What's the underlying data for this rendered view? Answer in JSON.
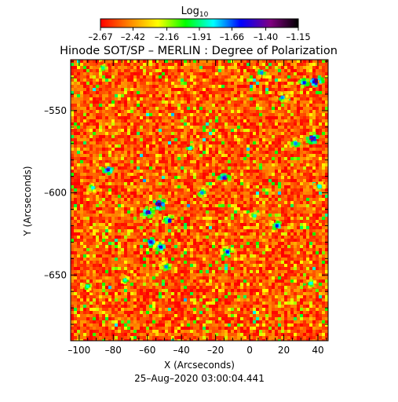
{
  "chart_data": {
    "type": "heatmap",
    "title": "Hinode SOT/SP – MERLIN : Degree of Polarization",
    "xlabel": "X (Arcseconds)",
    "ylabel": "Y (Arcseconds)",
    "timestamp": "25–Aug–2020 03:00:04.441",
    "xlim": [
      -105,
      46
    ],
    "ylim": [
      -690,
      -519
    ],
    "xticks": [
      -100,
      -80,
      -60,
      -40,
      -20,
      0,
      20,
      40
    ],
    "xtick_labels": [
      "–100",
      "–80",
      "–60",
      "–40",
      "–20",
      "0",
      "20",
      "40"
    ],
    "yticks": [
      -550,
      -600,
      -650
    ],
    "ytick_labels": [
      "–550",
      "–600",
      "–650"
    ],
    "colorbar": {
      "label_base": "Log",
      "label_sub": "10",
      "range": [
        -2.67,
        -1.15
      ],
      "ticks": [
        -2.67,
        -2.42,
        -2.16,
        -1.91,
        -1.66,
        -1.4,
        -1.15
      ],
      "tick_labels": [
        "–2.67",
        "–2.42",
        "–2.16",
        "–1.91",
        "–1.66",
        "–1.40",
        "–1.15"
      ],
      "colors": [
        "#ff0000",
        "#ff8000",
        "#ffff00",
        "#00ff00",
        "#00ffff",
        "#0000ff",
        "#800080",
        "#000000"
      ]
    },
    "background_level": -2.55,
    "regions": [
      {
        "x": -53,
        "y": -607,
        "level": -1.3
      },
      {
        "x": -60,
        "y": -612,
        "level": -1.45
      },
      {
        "x": -47,
        "y": -617,
        "level": -1.55
      },
      {
        "x": -58,
        "y": -630,
        "level": -1.5
      },
      {
        "x": -52,
        "y": -633,
        "level": -1.55
      },
      {
        "x": -49,
        "y": -645,
        "level": -1.7
      },
      {
        "x": 39,
        "y": -532,
        "level": -1.3
      },
      {
        "x": 32,
        "y": -533,
        "level": -1.6
      },
      {
        "x": 37,
        "y": -567,
        "level": -1.4
      },
      {
        "x": 27,
        "y": -570,
        "level": -1.7
      },
      {
        "x": 7,
        "y": -527,
        "level": -1.7
      },
      {
        "x": 19,
        "y": -542,
        "level": -1.7
      },
      {
        "x": -15,
        "y": -591,
        "level": -1.5
      },
      {
        "x": -28,
        "y": -600,
        "level": -1.7
      },
      {
        "x": -83,
        "y": -586,
        "level": -1.5
      },
      {
        "x": -92,
        "y": -597,
        "level": -1.8
      },
      {
        "x": -13,
        "y": -636,
        "level": -1.6
      },
      {
        "x": 16,
        "y": -620,
        "level": -1.6
      },
      {
        "x": -35,
        "y": -573,
        "level": -1.8
      },
      {
        "x": -95,
        "y": -657,
        "level": -1.85
      },
      {
        "x": -73,
        "y": -653,
        "level": -1.85
      },
      {
        "x": 36,
        "y": -655,
        "level": -1.8
      },
      {
        "x": -86,
        "y": -524,
        "level": -1.9
      },
      {
        "x": 3,
        "y": -614,
        "level": -1.85
      },
      {
        "x": 41,
        "y": -596,
        "level": -1.8
      }
    ]
  }
}
